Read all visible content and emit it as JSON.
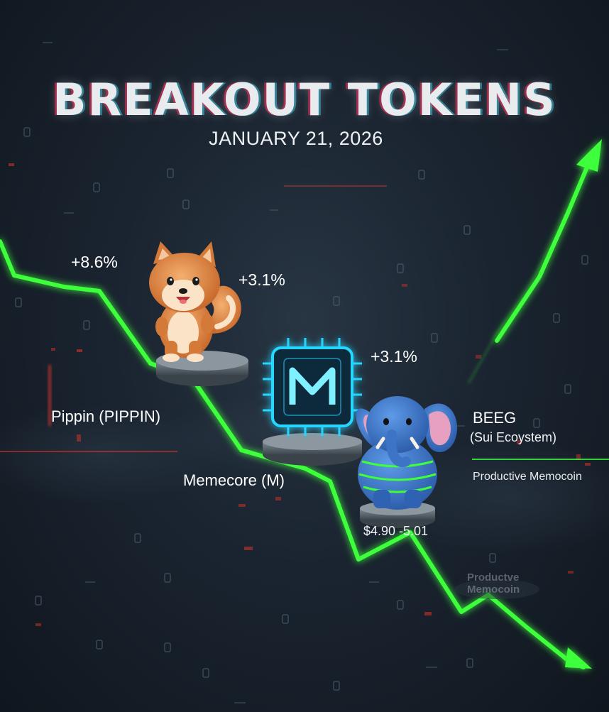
{
  "title": "BREAKOUT TOKENS",
  "date": "JANUARY 21, 2026",
  "tokens": [
    {
      "name": "Pippin (PIPPIN)",
      "change": "+8.6%",
      "mascot": "shiba-dog-mascot"
    },
    {
      "name": "Memecore (M)",
      "change": "+3.1%",
      "mascot": "m-chip-logo"
    },
    {
      "name": "BEEG",
      "subtitle": "(Sui Ecoystem)",
      "tagline": "Productive Memocoin",
      "change": "+3.1%",
      "price": "$4.90 -5.01",
      "mascot": "blue-elephant-mascot"
    }
  ],
  "ghost_text": "Productve Memocoin",
  "colors": {
    "line": "#3dff3a",
    "background": "#1a2430",
    "accent_red": "#e0342a",
    "chip_glow": "#27d6ff"
  }
}
